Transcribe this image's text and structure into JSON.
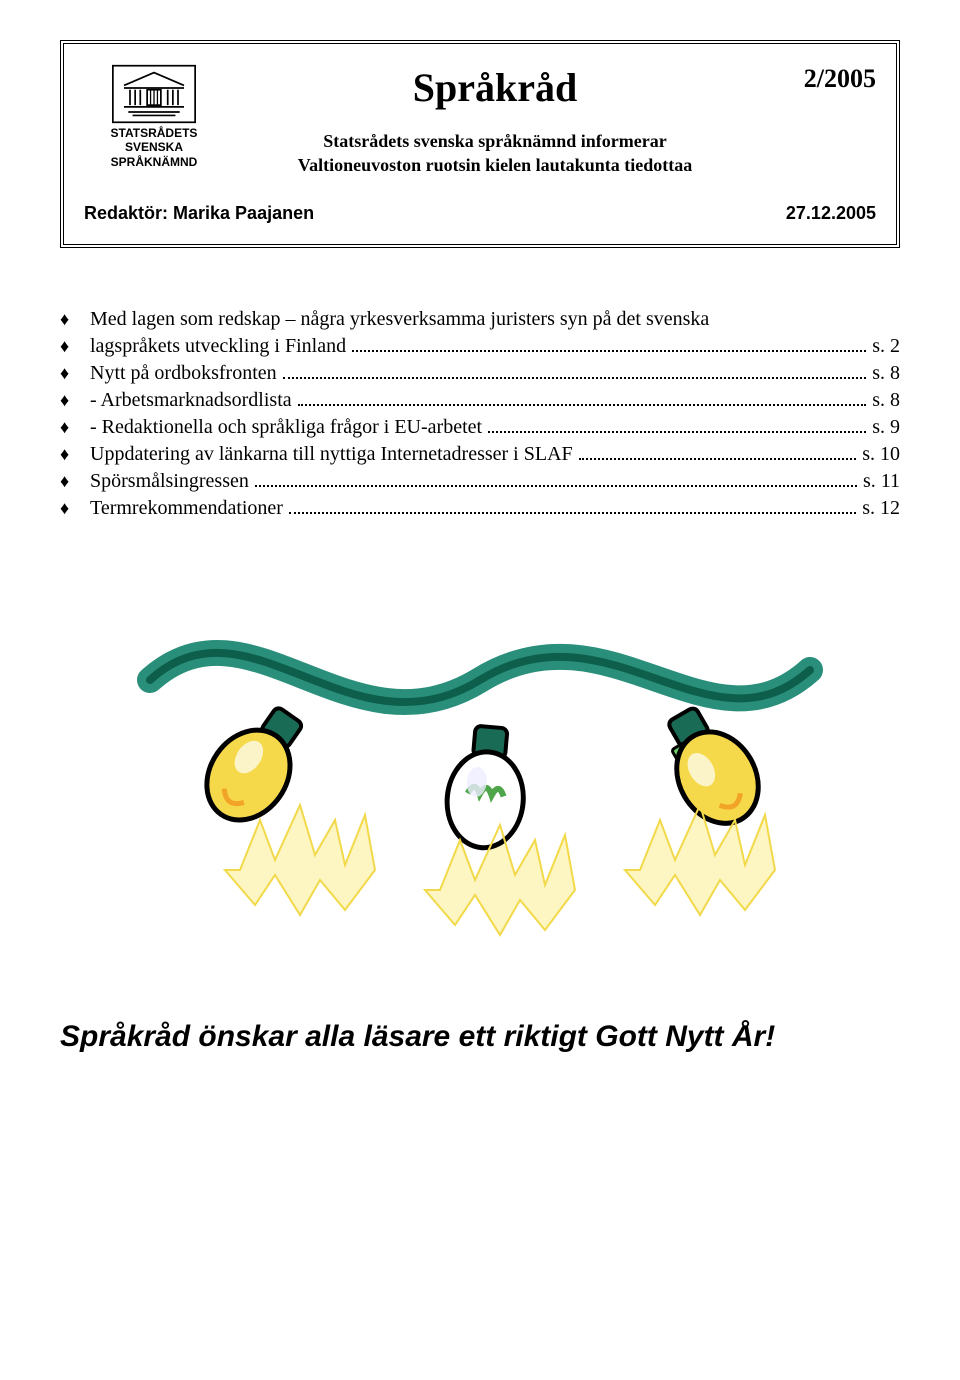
{
  "logo": {
    "line1": "STATSRÅDETS",
    "line2": "SVENSKA",
    "line3": "SPRÅKNÄMND"
  },
  "header": {
    "title": "Språkråd",
    "issue": "2/2005",
    "subtitle_line1": "Statsrådets svenska språknämnd informerar",
    "subtitle_line2": "Valtioneuvoston ruotsin kielen lautakunta tiedottaa",
    "redaktor_label": "Redaktör: Marika Paajanen",
    "date": "27.12.2005"
  },
  "toc": [
    {
      "label": "Med lagen som redskap – några yrkesverksamma juristers syn på det svenska",
      "page": ""
    },
    {
      "label": "lagspråkets utveckling i Finland",
      "page": "s. 2"
    },
    {
      "label": "Nytt på ordboksfronten",
      "page": "s. 8"
    },
    {
      "label": "- Arbetsmarknadsordlista",
      "page": "s. 8"
    },
    {
      "label": "- Redaktionella och språkliga frågor i EU-arbetet",
      "page": "s. 9"
    },
    {
      "label": "Uppdatering av länkarna till nyttiga Internetadresser i SLAF",
      "page": "s. 10"
    },
    {
      "label": "Spörsmålsingressen",
      "page": "s. 11"
    },
    {
      "label": "Termrekommendationer",
      "page": "s. 12"
    }
  ],
  "greeting": "Språkråd önskar alla läsare ett riktigt Gott Nytt År!",
  "colors": {
    "wire": "#2a8f7a",
    "wire_dark": "#0d5f4c",
    "bulb_yellow": "#f6d94a",
    "bulb_orange": "#f2a428",
    "bulb_green": "#4fa64a",
    "glow": "#fdf5c2",
    "outline": "#000000",
    "socket": "#1a6b56"
  }
}
